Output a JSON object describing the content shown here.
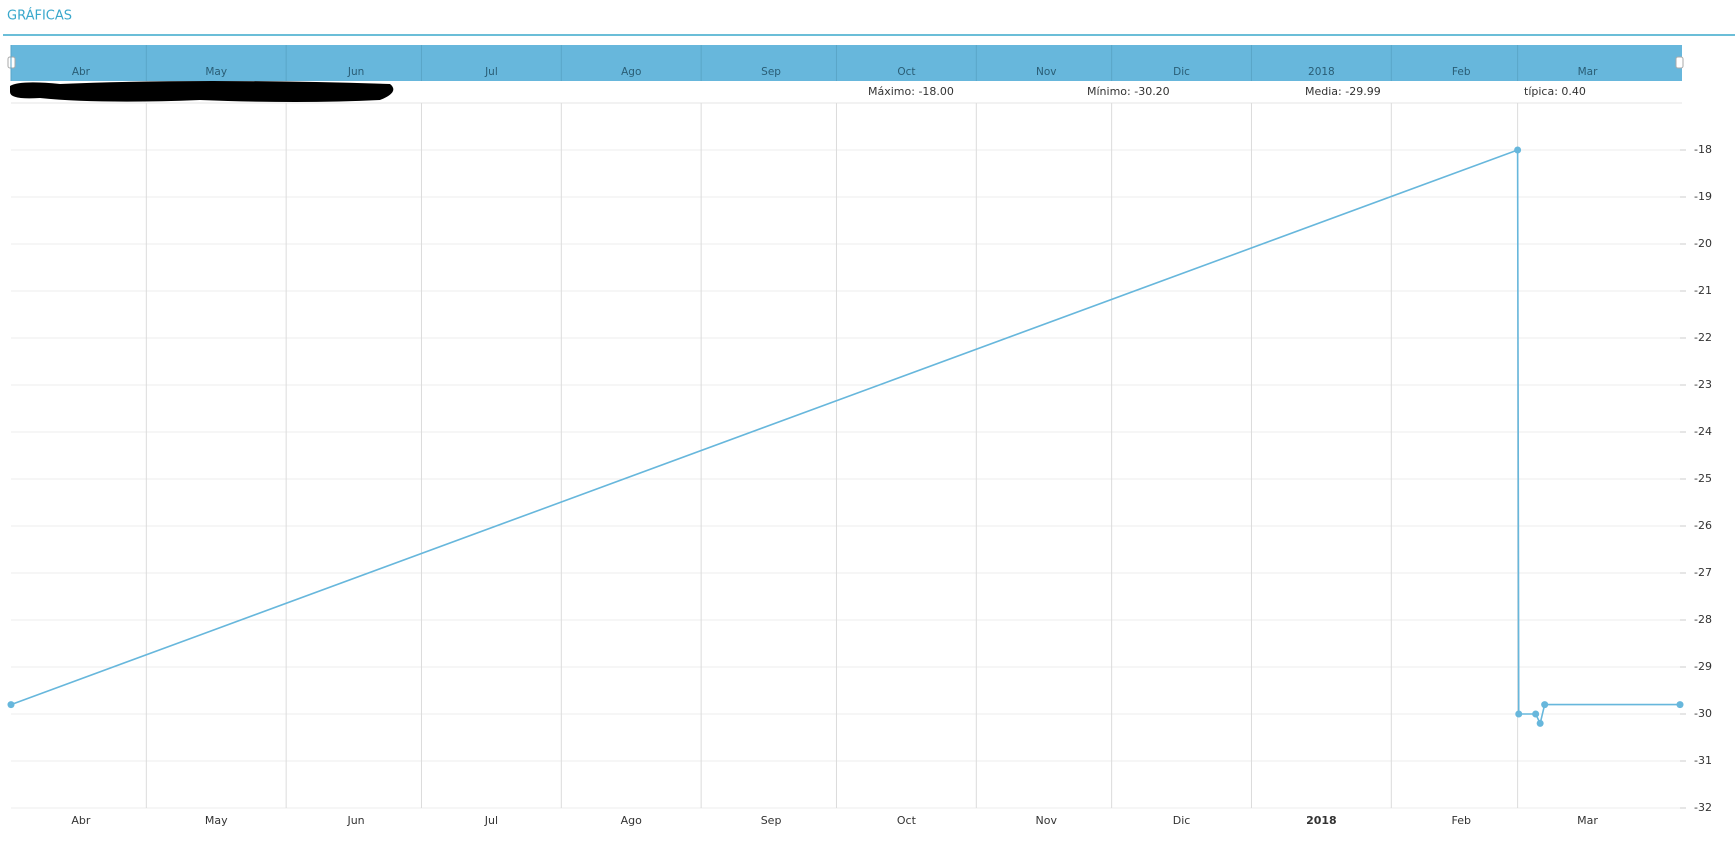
{
  "header": {
    "title": "GRÁFICAS"
  },
  "stats": [
    "Máximo: -18.00",
    "Mínimo: -30.20",
    "Media: -29.99",
    "típica: 0.40"
  ],
  "chart_data": {
    "type": "line",
    "color": "#67b7dc",
    "x": [
      "2017-04-01",
      "2018-03-01",
      "2018-03-01T06:00",
      "2018-03-05",
      "2018-03-06",
      "2018-03-07",
      "2018-04-06"
    ],
    "values": [
      -29.8,
      -18,
      -30,
      -30,
      -30.2,
      -29.8,
      -29.8
    ],
    "xlim": [
      "2017-04-01",
      "2018-04-06"
    ],
    "xticks": [
      {
        "value": "2017-04-01",
        "label": "Abr"
      },
      {
        "value": "2017-05-01",
        "label": "May"
      },
      {
        "value": "2017-06-01",
        "label": "Jun"
      },
      {
        "value": "2017-07-01",
        "label": "Jul"
      },
      {
        "value": "2017-08-01",
        "label": "Ago"
      },
      {
        "value": "2017-09-01",
        "label": "Sep"
      },
      {
        "value": "2017-10-01",
        "label": "Oct"
      },
      {
        "value": "2017-11-01",
        "label": "Nov"
      },
      {
        "value": "2017-12-01",
        "label": "Dic"
      },
      {
        "value": "2018-01-01",
        "label": "2018"
      },
      {
        "value": "2018-02-01",
        "label": "Feb"
      },
      {
        "value": "2018-03-01",
        "label": "Mar"
      }
    ],
    "ylim": [
      -32,
      -17
    ],
    "yticks": [
      -18,
      -19,
      -20,
      -21,
      -22,
      -23,
      -24,
      -25,
      -26,
      -27,
      -28,
      -29,
      -30,
      -31,
      -32
    ],
    "grid": true
  }
}
